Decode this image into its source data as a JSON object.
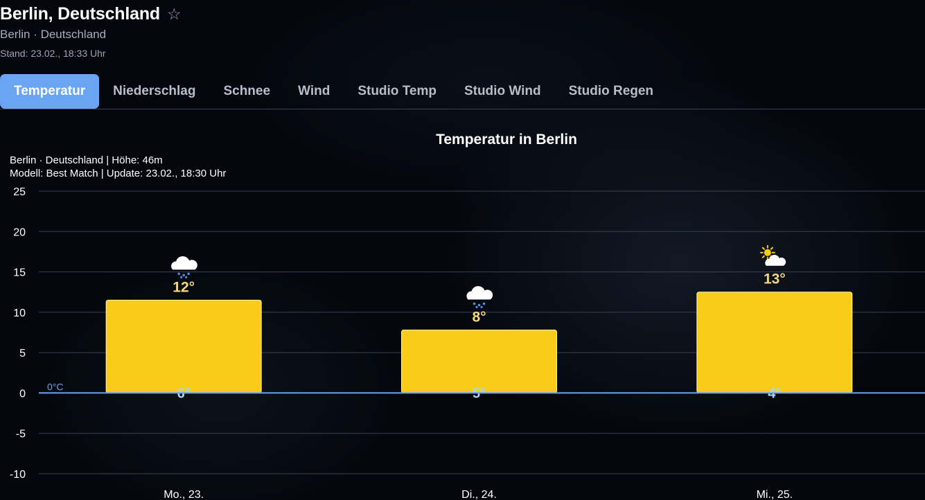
{
  "header": {
    "title": "Berlin, Deutschland",
    "star_glyph": "☆",
    "subtitle": "Berlin · Deutschland",
    "stand": "Stand: 23.02., 18:33 Uhr"
  },
  "tabs": [
    {
      "label": "Temperatur",
      "active": true
    },
    {
      "label": "Niederschlag",
      "active": false
    },
    {
      "label": "Schnee",
      "active": false
    },
    {
      "label": "Wind",
      "active": false
    },
    {
      "label": "Studio Temp",
      "active": false
    },
    {
      "label": "Studio Wind",
      "active": false
    },
    {
      "label": "Studio Regen",
      "active": false
    }
  ],
  "colors": {
    "bar": "#f9cc1a",
    "max_label": "#f8d77a",
    "min_label": "#a9d6f0",
    "zero_line": "#6aa4f2",
    "grid": "#3b4250",
    "tab_active": "#6aa4f2"
  },
  "chart_data": {
    "type": "bar",
    "title": "Temperatur in Berlin",
    "info_line1": "Berlin · Deutschland | Höhe: 46m",
    "info_line2": "Modell: Best Match | Update: 23.02., 18:30 Uhr",
    "zero_label": "0°C",
    "ylim": [
      -10,
      25
    ],
    "yticks": [
      25,
      20,
      15,
      10,
      5,
      0,
      -5,
      -10
    ],
    "categories": [
      "Mo., 23.",
      "Di., 24.",
      "Mi., 25."
    ],
    "max_values": [
      11.5,
      7.8,
      12.5
    ],
    "min_values": [
      0,
      0,
      0
    ],
    "max_labels": [
      "12°",
      "8°",
      "13°"
    ],
    "min_labels": [
      "6°",
      "5°",
      "4°"
    ],
    "icons": [
      "cloud-drizzle-icon",
      "cloud-drizzle-icon",
      "partly-sunny-icon"
    ],
    "grid": true
  }
}
